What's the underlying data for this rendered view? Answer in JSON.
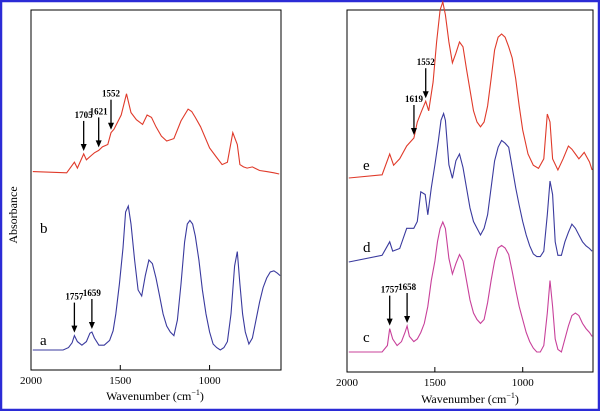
{
  "frame_color": "#2b2bd6",
  "chart_data": [
    {
      "type": "line",
      "x_direction": "reversed",
      "xlim": [
        2000,
        600
      ],
      "xticks": [
        "2000",
        "1500",
        "1000"
      ],
      "xlabel_main": "Wavenumber (cm",
      "xlabel_sup": "−1",
      "xlabel_close": ")",
      "ylabel": "Absorbance",
      "series": [
        {
          "name": "b",
          "color": "#e03a2a",
          "x": [
            1990,
            1800,
            1757,
            1740,
            1705,
            1690,
            1660,
            1645,
            1621,
            1600,
            1570,
            1552,
            1535,
            1495,
            1465,
            1440,
            1410,
            1375,
            1350,
            1325,
            1300,
            1270,
            1240,
            1200,
            1160,
            1120,
            1100,
            1080,
            1050,
            1000,
            960,
            930,
            900,
            870,
            845,
            830,
            810,
            790,
            760,
            720,
            680,
            640,
            610
          ],
          "y": [
            0.52,
            0.51,
            0.6,
            0.55,
            0.67,
            0.62,
            0.66,
            0.68,
            0.7,
            0.73,
            0.75,
            0.85,
            0.88,
            1.0,
            1.18,
            1.02,
            0.96,
            0.92,
            1.0,
            0.98,
            0.9,
            0.82,
            0.78,
            0.8,
            0.95,
            1.05,
            1.03,
            0.98,
            0.9,
            0.72,
            0.64,
            0.58,
            0.6,
            0.85,
            0.75,
            0.58,
            0.56,
            0.55,
            0.56,
            0.53,
            0.52,
            0.51,
            0.5
          ]
        },
        {
          "name": "a",
          "color": "#3a3a9e",
          "x": [
            1990,
            1820,
            1790,
            1770,
            1757,
            1740,
            1715,
            1690,
            1670,
            1659,
            1645,
            1620,
            1590,
            1560,
            1540,
            1525,
            1505,
            1485,
            1470,
            1455,
            1440,
            1420,
            1400,
            1380,
            1360,
            1340,
            1320,
            1300,
            1280,
            1260,
            1240,
            1220,
            1200,
            1180,
            1160,
            1140,
            1125,
            1110,
            1095,
            1080,
            1060,
            1040,
            1020,
            1000,
            980,
            960,
            940,
            920,
            900,
            880,
            860,
            845,
            830,
            815,
            800,
            780,
            760,
            740,
            720,
            700,
            680,
            660,
            640,
            620,
            605
          ],
          "y": [
            0.0,
            0.0,
            0.02,
            0.06,
            0.12,
            0.07,
            0.04,
            0.07,
            0.14,
            0.15,
            0.1,
            0.04,
            0.04,
            0.08,
            0.16,
            0.3,
            0.55,
            0.85,
            1.15,
            1.2,
            1.05,
            0.75,
            0.5,
            0.45,
            0.62,
            0.75,
            0.72,
            0.6,
            0.45,
            0.3,
            0.2,
            0.15,
            0.12,
            0.25,
            0.55,
            0.9,
            1.05,
            1.08,
            1.05,
            0.95,
            0.75,
            0.5,
            0.3,
            0.15,
            0.05,
            0.02,
            0.0,
            0.02,
            0.07,
            0.3,
            0.7,
            0.82,
            0.55,
            0.3,
            0.15,
            0.05,
            0.1,
            0.25,
            0.4,
            0.52,
            0.6,
            0.65,
            0.66,
            0.64,
            0.62
          ]
        }
      ],
      "annotations": [
        {
          "label": "1552",
          "x": 1552,
          "series": "b"
        },
        {
          "label": "1621",
          "x": 1621,
          "series": "b"
        },
        {
          "label": "1705",
          "x": 1705,
          "series": "b"
        },
        {
          "label": "1757",
          "x": 1757,
          "series": "a"
        },
        {
          "label": "1659",
          "x": 1659,
          "series": "a"
        }
      ]
    },
    {
      "type": "line",
      "x_direction": "reversed",
      "xlim": [
        2000,
        600
      ],
      "xticks": [
        "2000",
        "1500",
        "1000"
      ],
      "xlabel_main": "Wavenumber (cm",
      "xlabel_sup": "−1",
      "xlabel_close": ")",
      "ylabel": "",
      "series": [
        {
          "name": "e",
          "color": "#e03a2a",
          "x": [
            1990,
            1800,
            1757,
            1735,
            1700,
            1660,
            1619,
            1600,
            1575,
            1552,
            1535,
            1510,
            1490,
            1470,
            1455,
            1440,
            1420,
            1400,
            1380,
            1360,
            1340,
            1320,
            1300,
            1280,
            1260,
            1240,
            1220,
            1200,
            1180,
            1160,
            1140,
            1120,
            1100,
            1080,
            1060,
            1040,
            1020,
            1000,
            970,
            940,
            910,
            880,
            860,
            845,
            830,
            800,
            770,
            740,
            720,
            700,
            680,
            650,
            620,
            605
          ],
          "y": [
            0.0,
            0.02,
            0.15,
            0.08,
            0.12,
            0.2,
            0.25,
            0.35,
            0.42,
            0.48,
            0.42,
            0.6,
            0.85,
            1.05,
            1.1,
            1.02,
            0.85,
            0.72,
            0.78,
            0.85,
            0.82,
            0.68,
            0.55,
            0.42,
            0.35,
            0.32,
            0.35,
            0.45,
            0.62,
            0.8,
            0.88,
            0.9,
            0.88,
            0.82,
            0.75,
            0.62,
            0.45,
            0.3,
            0.15,
            0.08,
            0.06,
            0.12,
            0.4,
            0.35,
            0.12,
            0.05,
            0.12,
            0.2,
            0.18,
            0.15,
            0.12,
            0.16,
            0.1,
            0.05
          ]
        },
        {
          "name": "d",
          "color": "#3a3a9e",
          "x": [
            1990,
            1800,
            1757,
            1740,
            1700,
            1660,
            1620,
            1600,
            1580,
            1555,
            1540,
            1520,
            1500,
            1480,
            1465,
            1450,
            1440,
            1420,
            1400,
            1380,
            1360,
            1340,
            1320,
            1300,
            1280,
            1260,
            1240,
            1220,
            1200,
            1180,
            1160,
            1140,
            1120,
            1100,
            1080,
            1060,
            1040,
            1020,
            1000,
            980,
            960,
            940,
            920,
            900,
            880,
            860,
            845,
            830,
            815,
            800,
            780,
            760,
            740,
            720,
            700,
            680,
            660,
            640,
            620,
            605
          ],
          "y": [
            0.0,
            0.05,
            0.15,
            0.08,
            0.1,
            0.25,
            0.25,
            0.3,
            0.52,
            0.5,
            0.35,
            0.55,
            0.72,
            0.9,
            1.05,
            1.1,
            1.05,
            0.72,
            0.62,
            0.75,
            0.8,
            0.7,
            0.55,
            0.4,
            0.3,
            0.25,
            0.2,
            0.25,
            0.35,
            0.55,
            0.75,
            0.85,
            0.9,
            0.88,
            0.85,
            0.7,
            0.55,
            0.42,
            0.3,
            0.2,
            0.12,
            0.06,
            0.04,
            0.04,
            0.08,
            0.35,
            0.6,
            0.5,
            0.15,
            0.05,
            0.05,
            0.15,
            0.22,
            0.28,
            0.25,
            0.2,
            0.15,
            0.12,
            0.1,
            0.08
          ]
        },
        {
          "name": "c",
          "color": "#c8409a",
          "x": [
            1990,
            1800,
            1770,
            1757,
            1740,
            1715,
            1690,
            1670,
            1658,
            1645,
            1620,
            1600,
            1580,
            1560,
            1540,
            1520,
            1500,
            1485,
            1470,
            1455,
            1440,
            1420,
            1400,
            1380,
            1360,
            1340,
            1320,
            1300,
            1280,
            1260,
            1240,
            1220,
            1200,
            1180,
            1160,
            1140,
            1120,
            1100,
            1080,
            1060,
            1040,
            1020,
            1000,
            980,
            960,
            940,
            920,
            900,
            880,
            860,
            845,
            830,
            815,
            800,
            780,
            760,
            740,
            720,
            700,
            680,
            660,
            640,
            620,
            605
          ],
          "y": [
            0.0,
            0.0,
            0.05,
            0.18,
            0.1,
            0.05,
            0.08,
            0.15,
            0.2,
            0.12,
            0.08,
            0.1,
            0.15,
            0.22,
            0.35,
            0.55,
            0.7,
            0.85,
            0.95,
            1.0,
            0.95,
            0.72,
            0.6,
            0.68,
            0.75,
            0.7,
            0.55,
            0.4,
            0.3,
            0.25,
            0.22,
            0.25,
            0.38,
            0.55,
            0.7,
            0.8,
            0.82,
            0.8,
            0.75,
            0.62,
            0.48,
            0.35,
            0.25,
            0.15,
            0.08,
            0.03,
            0.0,
            0.0,
            0.05,
            0.3,
            0.55,
            0.35,
            0.1,
            0.02,
            0.0,
            0.1,
            0.2,
            0.28,
            0.3,
            0.28,
            0.22,
            0.18,
            0.15,
            0.12
          ]
        }
      ],
      "annotations": [
        {
          "label": "1552",
          "x": 1552,
          "series": "e"
        },
        {
          "label": "1619",
          "x": 1619,
          "series": "e"
        },
        {
          "label": "1757",
          "x": 1757,
          "series": "c"
        },
        {
          "label": "1658",
          "x": 1658,
          "series": "c"
        }
      ]
    }
  ]
}
